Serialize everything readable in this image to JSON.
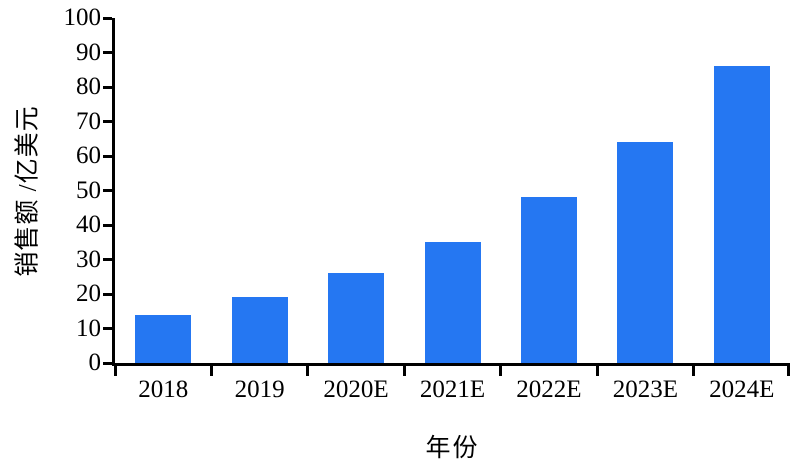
{
  "chart_data": {
    "type": "bar",
    "title": "",
    "categories": [
      "2018",
      "2019",
      "2020E",
      "2021E",
      "2022E",
      "2023E",
      "2024E"
    ],
    "values": [
      14,
      19,
      26,
      35,
      48,
      64,
      86
    ],
    "xlabel": "年份",
    "ylabel": "销售额 /亿美元",
    "ylim": [
      0,
      100
    ],
    "yticks": [
      0,
      10,
      20,
      30,
      40,
      50,
      60,
      70,
      80,
      90,
      100
    ],
    "bar_color": "#2577F2",
    "axis_color": "#000000",
    "background": "#FFFFFF",
    "grid": false,
    "legend": "none"
  }
}
